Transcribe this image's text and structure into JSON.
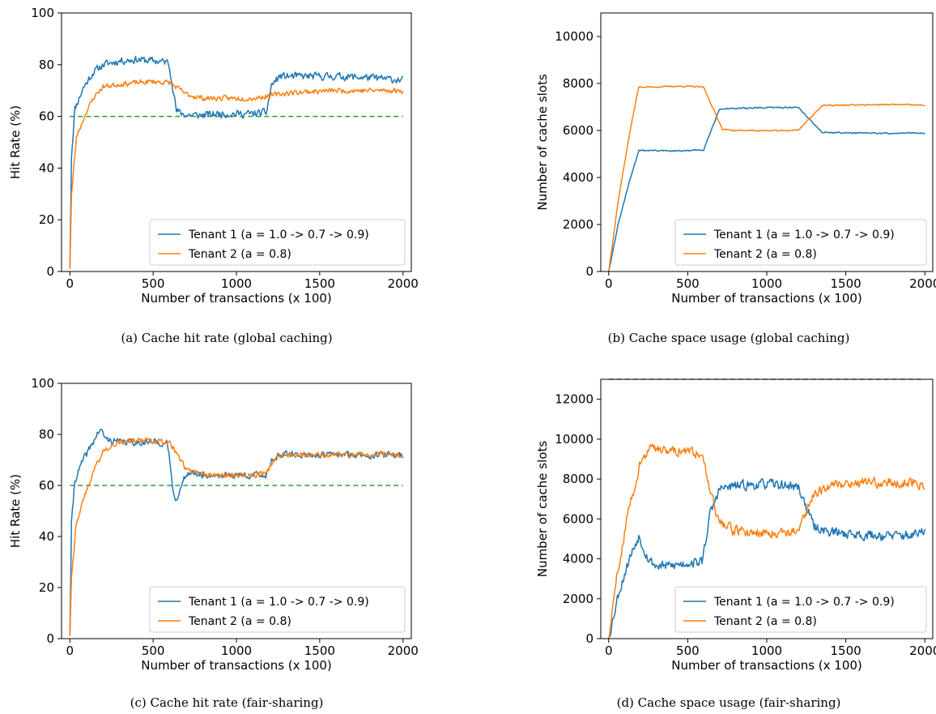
{
  "colors": {
    "tenant1": "#1f77b4",
    "tenant2": "#ff7f0e",
    "threshold": "#2ca02c",
    "axis": "#000000"
  },
  "chart_data": [
    {
      "type": "line",
      "caption": "(a) Cache hit rate (global caching)",
      "xlabel": "Number of transactions (x 100)",
      "ylabel": "Hit Rate (%)",
      "xlim": [
        -50,
        2050
      ],
      "ylim": [
        0,
        100
      ],
      "xticks": [
        0,
        500,
        1000,
        1500,
        2000
      ],
      "yticks": [
        0,
        20,
        40,
        60,
        80,
        100
      ],
      "legend": "lower-right",
      "grid": false,
      "hline": {
        "y": 60,
        "style": "dashed"
      },
      "series": [
        {
          "name": "Tenant 1 (a = 1.0 -> 0.7 -> 0.9)",
          "color": "tenant1",
          "noise": 1.3,
          "seed": 11,
          "points": [
            [
              0,
              1
            ],
            [
              10,
              45
            ],
            [
              30,
              63
            ],
            [
              80,
              71
            ],
            [
              140,
              77
            ],
            [
              200,
              80
            ],
            [
              300,
              81.5
            ],
            [
              400,
              82
            ],
            [
              500,
              81.5
            ],
            [
              590,
              81
            ],
            [
              610,
              75
            ],
            [
              640,
              62
            ],
            [
              700,
              60.5
            ],
            [
              800,
              60.5
            ],
            [
              900,
              61
            ],
            [
              1000,
              61
            ],
            [
              1100,
              61
            ],
            [
              1180,
              61.5
            ],
            [
              1210,
              72
            ],
            [
              1260,
              75.5
            ],
            [
              1400,
              75.5
            ],
            [
              1600,
              75.5
            ],
            [
              1800,
              75
            ],
            [
              2000,
              74
            ]
          ]
        },
        {
          "name": "Tenant 2 (a = 0.8)",
          "color": "tenant2",
          "noise": 0.9,
          "seed": 23,
          "points": [
            [
              0,
              1
            ],
            [
              10,
              30
            ],
            [
              40,
              52
            ],
            [
              100,
              62
            ],
            [
              150,
              68
            ],
            [
              200,
              71.5
            ],
            [
              300,
              72.5
            ],
            [
              400,
              73
            ],
            [
              500,
              73.5
            ],
            [
              600,
              73
            ],
            [
              700,
              68.5
            ],
            [
              800,
              67
            ],
            [
              900,
              67
            ],
            [
              1000,
              67
            ],
            [
              1100,
              67
            ],
            [
              1200,
              68
            ],
            [
              1300,
              69
            ],
            [
              1400,
              69.5
            ],
            [
              1600,
              70
            ],
            [
              1800,
              70
            ],
            [
              2000,
              70
            ]
          ]
        }
      ]
    },
    {
      "type": "line",
      "caption": "(b) Cache space usage (global caching)",
      "xlabel": "Number of transactions (x 100)",
      "ylabel": "Number of cache slots",
      "xlim": [
        -50,
        2050
      ],
      "ylim": [
        0,
        11000
      ],
      "xticks": [
        0,
        500,
        1000,
        1500,
        2000
      ],
      "yticks": [
        0,
        2000,
        4000,
        6000,
        8000,
        10000
      ],
      "legend": "lower-right",
      "grid": false,
      "series": [
        {
          "name": "Tenant 1 (a = 1.0 -> 0.7 -> 0.9)",
          "color": "tenant1",
          "noise": 25,
          "seed": 31,
          "points": [
            [
              0,
              0
            ],
            [
              60,
              2000
            ],
            [
              130,
              3800
            ],
            [
              190,
              5150
            ],
            [
              300,
              5150
            ],
            [
              400,
              5120
            ],
            [
              500,
              5140
            ],
            [
              600,
              5180
            ],
            [
              700,
              6900
            ],
            [
              800,
              6950
            ],
            [
              900,
              6950
            ],
            [
              1000,
              6970
            ],
            [
              1100,
              6980
            ],
            [
              1200,
              6980
            ],
            [
              1350,
              5920
            ],
            [
              1500,
              5900
            ],
            [
              1700,
              5880
            ],
            [
              1850,
              5880
            ],
            [
              2000,
              5900
            ]
          ]
        },
        {
          "name": "Tenant 2 (a = 0.8)",
          "color": "tenant2",
          "noise": 25,
          "seed": 37,
          "points": [
            [
              0,
              0
            ],
            [
              60,
              3000
            ],
            [
              130,
              5800
            ],
            [
              190,
              7850
            ],
            [
              300,
              7850
            ],
            [
              400,
              7880
            ],
            [
              500,
              7880
            ],
            [
              600,
              7840
            ],
            [
              720,
              6050
            ],
            [
              800,
              6000
            ],
            [
              900,
              6000
            ],
            [
              1000,
              5990
            ],
            [
              1100,
              5990
            ],
            [
              1200,
              6020
            ],
            [
              1350,
              7060
            ],
            [
              1500,
              7080
            ],
            [
              1700,
              7100
            ],
            [
              1850,
              7100
            ],
            [
              2000,
              7070
            ]
          ]
        }
      ]
    },
    {
      "type": "line",
      "caption": "(c) Cache hit rate (fair-sharing)",
      "xlabel": "Number of transactions (x 100)",
      "ylabel": "Hit Rate (%)",
      "xlim": [
        -50,
        2050
      ],
      "ylim": [
        0,
        100
      ],
      "xticks": [
        0,
        500,
        1000,
        1500,
        2000
      ],
      "yticks": [
        0,
        20,
        40,
        60,
        80,
        100
      ],
      "legend": "lower-right",
      "grid": false,
      "hline": {
        "y": 60,
        "style": "dashed"
      },
      "series": [
        {
          "name": "Tenant 1 (a = 1.0 -> 0.7 -> 0.9)",
          "color": "tenant1",
          "noise": 1.2,
          "seed": 41,
          "points": [
            [
              0,
              1
            ],
            [
              10,
              45
            ],
            [
              30,
              62
            ],
            [
              80,
              70
            ],
            [
              140,
              77
            ],
            [
              180,
              82
            ],
            [
              220,
              78
            ],
            [
              300,
              77
            ],
            [
              400,
              77
            ],
            [
              500,
              77
            ],
            [
              580,
              76.5
            ],
            [
              600,
              70
            ],
            [
              620,
              57
            ],
            [
              640,
              55
            ],
            [
              680,
              61
            ],
            [
              700,
              65
            ],
            [
              800,
              64
            ],
            [
              900,
              64
            ],
            [
              1000,
              64
            ],
            [
              1100,
              64
            ],
            [
              1180,
              64
            ],
            [
              1210,
              70
            ],
            [
              1260,
              72
            ],
            [
              1400,
              72
            ],
            [
              1600,
              72
            ],
            [
              1800,
              72
            ],
            [
              2000,
              72
            ]
          ]
        },
        {
          "name": "Tenant 2 (a = 0.8)",
          "color": "tenant2",
          "noise": 1.0,
          "seed": 43,
          "points": [
            [
              0,
              1
            ],
            [
              10,
              25
            ],
            [
              40,
              46
            ],
            [
              100,
              58
            ],
            [
              150,
              67
            ],
            [
              200,
              73
            ],
            [
              260,
              76.5
            ],
            [
              300,
              77
            ],
            [
              400,
              77.5
            ],
            [
              500,
              77.5
            ],
            [
              600,
              77
            ],
            [
              700,
              66
            ],
            [
              800,
              64
            ],
            [
              900,
              64
            ],
            [
              1000,
              64
            ],
            [
              1100,
              64
            ],
            [
              1180,
              65
            ],
            [
              1250,
              72
            ],
            [
              1300,
              72
            ],
            [
              1400,
              72
            ],
            [
              1600,
              72
            ],
            [
              1800,
              72
            ],
            [
              2000,
              72
            ]
          ]
        }
      ]
    },
    {
      "type": "line",
      "caption": "(d) Cache space usage (fair-sharing)",
      "xlabel": "Number of transactions (x 100)",
      "ylabel": "Number of cache slots",
      "xlim": [
        -50,
        2050
      ],
      "ylim": [
        0,
        13000
      ],
      "xticks": [
        0,
        500,
        1000,
        1500,
        2000
      ],
      "yticks": [
        0,
        2000,
        4000,
        6000,
        8000,
        10000,
        12000
      ],
      "legend": "lower-right",
      "grid": false,
      "hline": {
        "y": 13000,
        "style": "dashed"
      },
      "series": [
        {
          "name": "Tenant 1 (a = 1.0 -> 0.7 -> 0.9)",
          "color": "tenant1",
          "noise": 220,
          "seed": 53,
          "points": [
            [
              0,
              0
            ],
            [
              60,
              2200
            ],
            [
              130,
              4000
            ],
            [
              190,
              5150
            ],
            [
              250,
              4000
            ],
            [
              300,
              3650
            ],
            [
              400,
              3650
            ],
            [
              500,
              3800
            ],
            [
              590,
              3850
            ],
            [
              640,
              6200
            ],
            [
              700,
              7500
            ],
            [
              800,
              7650
            ],
            [
              900,
              7700
            ],
            [
              1000,
              7750
            ],
            [
              1100,
              7700
            ],
            [
              1200,
              7600
            ],
            [
              1300,
              5600
            ],
            [
              1400,
              5350
            ],
            [
              1600,
              5200
            ],
            [
              1800,
              5150
            ],
            [
              1950,
              5200
            ],
            [
              2000,
              5450
            ]
          ]
        },
        {
          "name": "Tenant 2 (a = 0.8)",
          "color": "tenant2",
          "noise": 220,
          "seed": 59,
          "points": [
            [
              0,
              0
            ],
            [
              60,
              3500
            ],
            [
              130,
              6600
            ],
            [
              200,
              8800
            ],
            [
              260,
              9500
            ],
            [
              300,
              9550
            ],
            [
              400,
              9450
            ],
            [
              500,
              9350
            ],
            [
              590,
              9300
            ],
            [
              640,
              7600
            ],
            [
              700,
              5800
            ],
            [
              800,
              5400
            ],
            [
              900,
              5350
            ],
            [
              1000,
              5300
            ],
            [
              1100,
              5350
            ],
            [
              1200,
              5400
            ],
            [
              1300,
              7300
            ],
            [
              1400,
              7700
            ],
            [
              1600,
              7850
            ],
            [
              1800,
              7800
            ],
            [
              1950,
              7850
            ],
            [
              2000,
              7500
            ]
          ]
        }
      ]
    }
  ]
}
